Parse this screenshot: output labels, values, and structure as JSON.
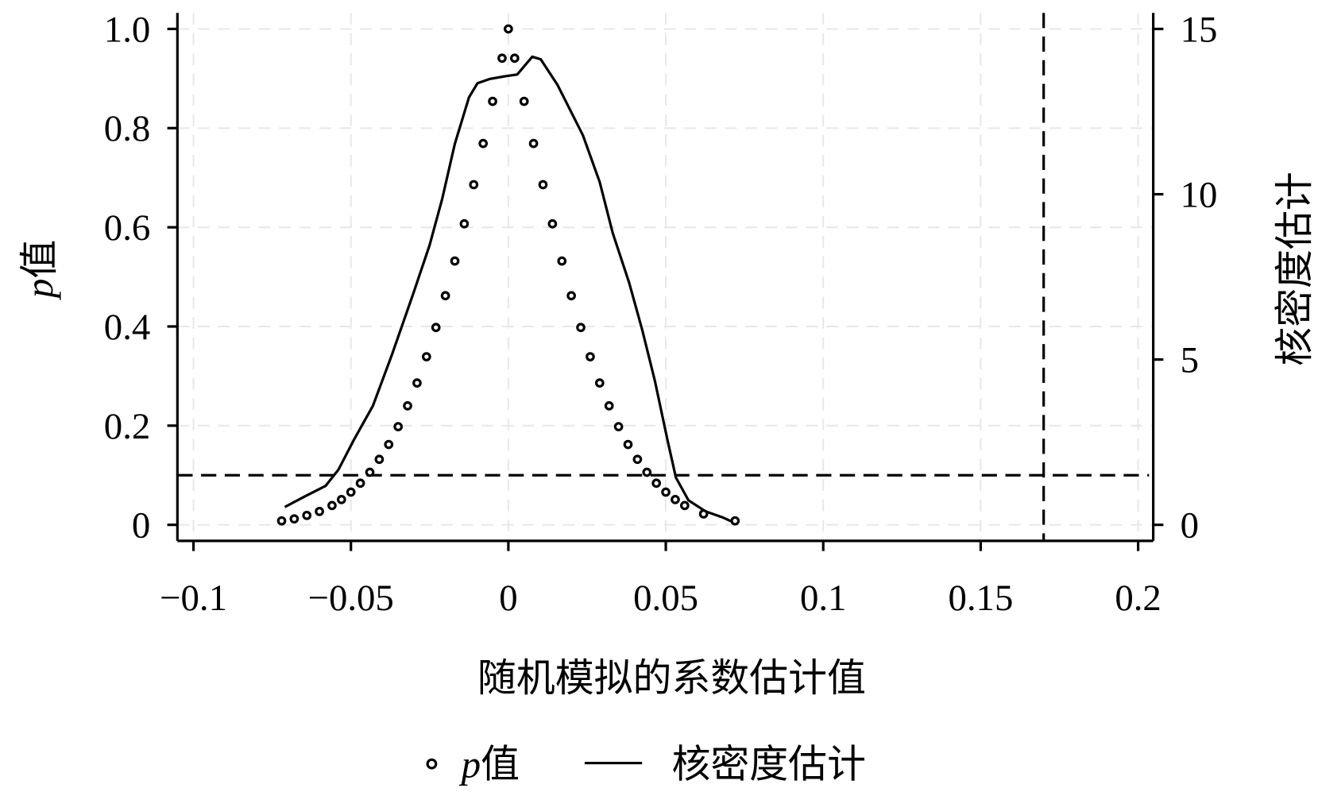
{
  "chart_data": {
    "type": "scatter+line",
    "xlabel": "随机模拟的系数估计值",
    "ylabel_left": {
      "italic": "p",
      "text": "值"
    },
    "ylabel_right": "核密度估计",
    "xlim": [
      -0.105,
      0.205
    ],
    "ylim_left": [
      0,
      1.0
    ],
    "ylim_right": [
      0,
      15
    ],
    "x_ticks": [
      -0.1,
      -0.05,
      0,
      0.05,
      0.1,
      0.15,
      0.2
    ],
    "x_tick_labels": [
      "−0.1",
      "−0.05",
      "0",
      "0.05",
      "0.1",
      "0.15",
      "0.2"
    ],
    "y_left_ticks": [
      0,
      0.2,
      0.4,
      0.6,
      0.8,
      1.0
    ],
    "y_left_tick_labels": [
      "0",
      "0.2",
      "0.4",
      "0.6",
      "0.8",
      "1.0"
    ],
    "y_right_ticks": [
      0,
      5,
      10,
      15
    ],
    "y_right_tick_labels": [
      "0",
      "5",
      "10",
      "15"
    ],
    "grid": true,
    "reference_lines": {
      "horizontal_p": 0.1,
      "vertical_x": 0.17
    },
    "legend": {
      "placement": "bottom",
      "entries": [
        {
          "marker": "circle",
          "italic": "p",
          "text": "值"
        },
        {
          "marker": "line",
          "text": "核密度估计"
        }
      ]
    },
    "series": [
      {
        "name": "p值",
        "type": "scatter",
        "axis": "left",
        "x": [
          -0.072,
          -0.068,
          -0.064,
          -0.06,
          -0.056,
          -0.053,
          -0.05,
          -0.047,
          -0.044,
          -0.041,
          -0.038,
          -0.035,
          -0.032,
          -0.029,
          -0.026,
          -0.023,
          -0.02,
          -0.017,
          -0.014,
          -0.011,
          -0.008,
          -0.005,
          -0.002,
          0,
          0.002,
          0.005,
          0.008,
          0.011,
          0.014,
          0.017,
          0.02,
          0.023,
          0.026,
          0.029,
          0.032,
          0.035,
          0.038,
          0.041,
          0.044,
          0.047,
          0.05,
          0.053,
          0.056,
          0.062,
          0.072
        ],
        "y": [
          0.008,
          0.012,
          0.019,
          0.027,
          0.039,
          0.051,
          0.066,
          0.084,
          0.106,
          0.132,
          0.162,
          0.198,
          0.24,
          0.286,
          0.339,
          0.398,
          0.462,
          0.532,
          0.607,
          0.686,
          0.769,
          0.854,
          0.941,
          1.0,
          0.941,
          0.854,
          0.769,
          0.686,
          0.607,
          0.532,
          0.462,
          0.398,
          0.339,
          0.286,
          0.24,
          0.198,
          0.162,
          0.132,
          0.106,
          0.084,
          0.066,
          0.051,
          0.039,
          0.022,
          0.008
        ]
      },
      {
        "name": "核密度估计",
        "type": "line",
        "axis": "right",
        "x": [
          -0.071,
          -0.065,
          -0.058,
          -0.054,
          -0.049,
          -0.043,
          -0.037,
          -0.03,
          -0.025,
          -0.021,
          -0.017,
          -0.0125,
          -0.0098,
          -0.0058,
          -0.001,
          0.0028,
          0.0076,
          0.0103,
          0.0156,
          0.0237,
          0.029,
          0.0331,
          0.0384,
          0.0425,
          0.0465,
          0.0505,
          0.0532,
          0.0572,
          0.0626,
          0.0679,
          0.0714
        ],
        "y": [
          0.54,
          0.84,
          1.18,
          1.66,
          2.58,
          3.6,
          5.14,
          7.05,
          8.46,
          9.86,
          11.52,
          12.93,
          13.36,
          13.49,
          13.57,
          13.62,
          14.16,
          14.08,
          13.31,
          11.78,
          10.37,
          8.84,
          7.31,
          5.9,
          4.37,
          2.58,
          1.43,
          0.74,
          0.41,
          0.23,
          0.08
        ]
      }
    ]
  }
}
